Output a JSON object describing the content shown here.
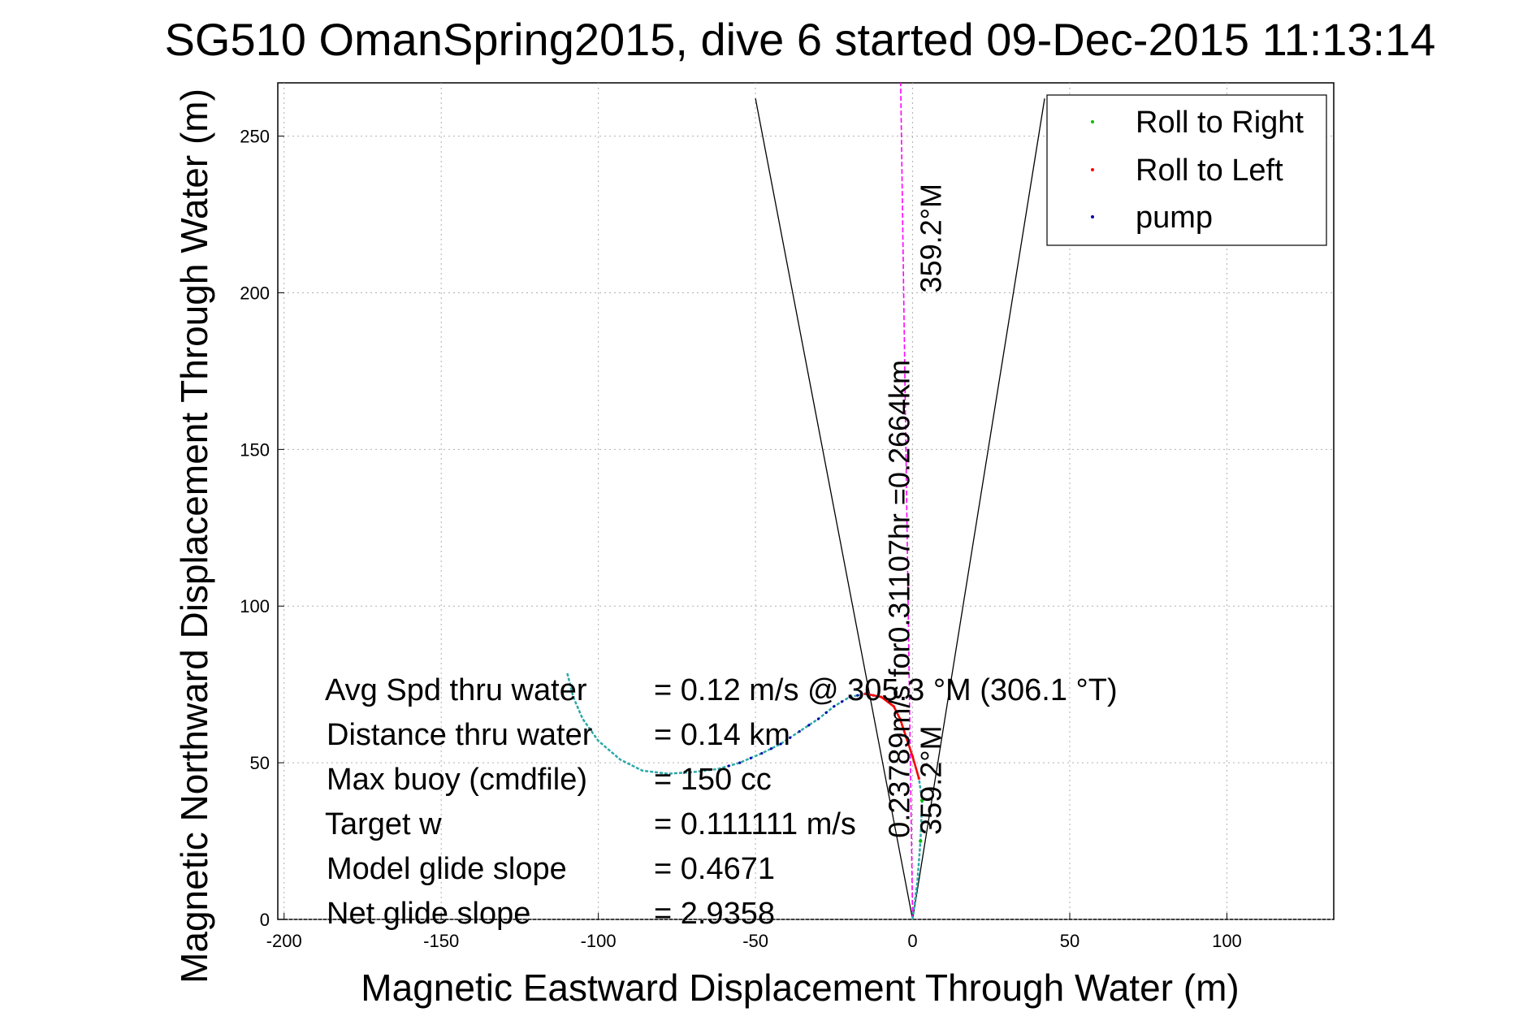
{
  "chart_data": {
    "type": "scatter",
    "title": "SG510 OmanSpring2015, dive 6 started 09-Dec-2015 11:13:14",
    "xlabel": "Magnetic Eastward Displacement Through Water (m)",
    "ylabel": "Magnetic Northward Displacement Through Water (m)",
    "xlim": [
      -202,
      134
    ],
    "ylim": [
      0,
      267
    ],
    "xticks": [
      -200,
      -150,
      -100,
      -50,
      0,
      50,
      100
    ],
    "yticks": [
      0,
      50,
      100,
      150,
      200,
      250
    ],
    "grid": true,
    "legend_position": "top-right",
    "colors": {
      "roll_right": "#00c000",
      "roll_left": "#ff0000",
      "pump": "#0000aa",
      "track": "#2ba8a8",
      "heading_line": "#ff00ff",
      "cone": "#000000"
    },
    "legend": [
      {
        "label": "Roll to Right",
        "color": "#00c000"
      },
      {
        "label": "Roll to Left",
        "color": "#ff0000"
      },
      {
        "label": "pump",
        "color": "#0000aa"
      }
    ],
    "track_points": [
      [
        0,
        0
      ],
      [
        1.5,
        12
      ],
      [
        2.5,
        25
      ],
      [
        3,
        38
      ],
      [
        2,
        45
      ],
      [
        0,
        52
      ],
      [
        -2,
        58
      ],
      [
        -4,
        64
      ],
      [
        -6,
        68
      ],
      [
        -10,
        71
      ],
      [
        -15,
        72
      ],
      [
        -20,
        71
      ],
      [
        -25,
        68
      ],
      [
        -30,
        64
      ],
      [
        -36,
        60
      ],
      [
        -42,
        56
      ],
      [
        -48,
        53
      ],
      [
        -55,
        50
      ],
      [
        -62,
        48
      ],
      [
        -70,
        47
      ],
      [
        -78,
        46.5
      ],
      [
        -86,
        47.5
      ],
      [
        -93,
        51
      ],
      [
        -100,
        57
      ],
      [
        -105,
        64
      ],
      [
        -108,
        71
      ],
      [
        -110,
        79
      ]
    ],
    "roll_left_points": [
      [
        2,
        45
      ],
      [
        0,
        52
      ],
      [
        -2,
        58
      ],
      [
        -4,
        64
      ],
      [
        -6,
        68
      ],
      [
        -10,
        71
      ],
      [
        -15,
        72
      ]
    ],
    "roll_right_points": [
      [
        2.5,
        25
      ],
      [
        3,
        38
      ]
    ],
    "heading_line": {
      "x": [
        0,
        -3.8
      ],
      "y": [
        0,
        267
      ]
    },
    "cone_lines": [
      {
        "x": [
          0,
          -50
        ],
        "y": [
          0,
          262
        ]
      },
      {
        "x": [
          0,
          42
        ],
        "y": [
          0,
          262
        ]
      }
    ],
    "annotations": [
      {
        "text": "359.2°M",
        "x": 9,
        "y": 200
      },
      {
        "text": "0.23789m/s for0.31107hr =0.2664km",
        "x": -1,
        "y": 26
      },
      {
        "text": "359.2°M",
        "x": 9,
        "y": 27
      }
    ],
    "stats": [
      {
        "label": "Avg Spd thru water",
        "value": "=  0.12 m/s @ 305.3 °M (306.1 °T)"
      },
      {
        "label": "Distance thru water",
        "value": "=  0.14 km"
      },
      {
        "label": "Max buoy (cmdfile)",
        "value": "= 150 cc"
      },
      {
        "label": "Target w",
        "value": "= 0.111111 m/s"
      },
      {
        "label": "Model glide slope",
        "value": "= 0.4671"
      },
      {
        "label": "Net glide slope",
        "value": "= 2.9358"
      }
    ]
  }
}
